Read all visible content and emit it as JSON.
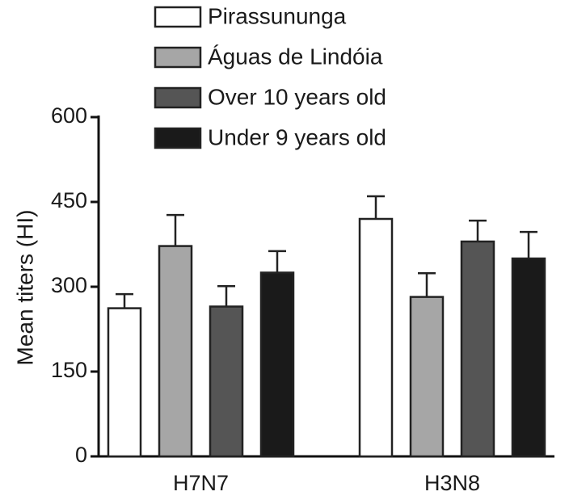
{
  "chart_data": {
    "type": "bar",
    "ylabel": "Mean titers (HI)",
    "xlabel": "",
    "ylim": [
      0,
      600
    ],
    "yticks": [
      0,
      150,
      300,
      450,
      600
    ],
    "categories": [
      "H7N7",
      "H3N8"
    ],
    "legend_position": "top",
    "grid": false,
    "series": [
      {
        "name": "Pirassununga",
        "color": "#ffffff",
        "values": [
          262,
          420
        ],
        "errors": [
          25,
          40
        ]
      },
      {
        "name": "Águas de Lindóia",
        "color": "#a6a6a6",
        "values": [
          372,
          282
        ],
        "errors": [
          55,
          42
        ]
      },
      {
        "name": "Over 10 years old",
        "color": "#555555",
        "values": [
          265,
          380
        ],
        "errors": [
          36,
          37
        ]
      },
      {
        "name": "Under 9 years old",
        "color": "#1a1a1a",
        "values": [
          325,
          350
        ],
        "errors": [
          38,
          47
        ]
      }
    ]
  }
}
